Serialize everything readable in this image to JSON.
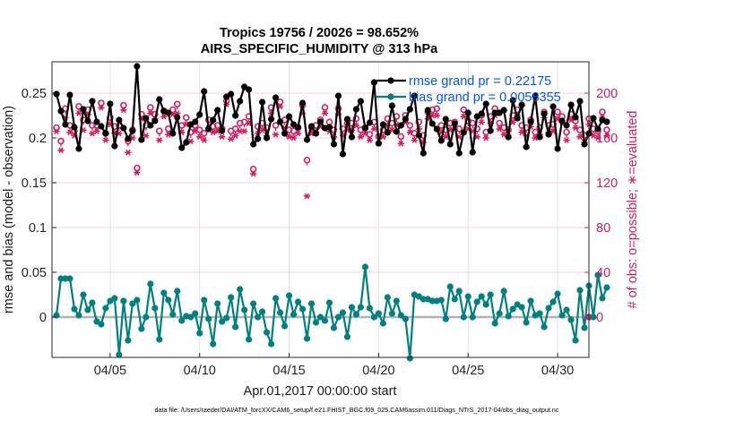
{
  "chart_data": {
    "type": "line",
    "title": "Tropics 19756 / 20026 = 98.652%",
    "subtitle": "AIRS_SPECIFIC_HUMIDITY @ 313 hPa",
    "xlabel": "Apr.01,2017 00:00:00 start",
    "ylabel_left": "rmse and bias (model - observation)",
    "ylabel_right": "# of obs: o=possible; ∗=evaluated",
    "footer": "data file: /Users/raeder/DAI/ATM_forcXX/CAM6_setup/f.e21.FHIST_BGC.f09_025.CAM6assim.011/Diags_NTrS_2017-04/obs_diag_output.nc",
    "x_start_day": 0.75,
    "x_end_day": 30.75,
    "xticks": [
      {
        "day": 4,
        "label": "04/05"
      },
      {
        "day": 9,
        "label": "04/10"
      },
      {
        "day": 14,
        "label": "04/15"
      },
      {
        "day": 19,
        "label": "04/20"
      },
      {
        "day": 24,
        "label": "04/25"
      },
      {
        "day": 29,
        "label": "04/30"
      }
    ],
    "ylim_left": [
      -0.045,
      0.285
    ],
    "yticks_left": [
      {
        "v": 0,
        "label": "0"
      },
      {
        "v": 0.05,
        "label": "0.05"
      },
      {
        "v": 0.1,
        "label": "0.1"
      },
      {
        "v": 0.15,
        "label": "0.15"
      },
      {
        "v": 0.2,
        "label": "0.2"
      },
      {
        "v": 0.25,
        "label": "0.25"
      }
    ],
    "ylim_right": [
      -36,
      228
    ],
    "yticks_right": [
      {
        "v": 0,
        "label": "0"
      },
      {
        "v": 40,
        "label": "40"
      },
      {
        "v": 80,
        "label": "80"
      },
      {
        "v": 120,
        "label": "120"
      },
      {
        "v": 160,
        "label": "160"
      },
      {
        "v": 200,
        "label": "200"
      }
    ],
    "grid": true,
    "legend": [
      {
        "name": "rmse grand pr = 0.22175",
        "color": "#000000"
      },
      {
        "name": "bias grand pr = 0.0058355",
        "color": "#008080"
      }
    ],
    "legend_position": "top-right",
    "colors": {
      "rmse": "#000000",
      "bias": "#008080",
      "counts": "#d81b60",
      "zero_line": "#b3b3b3",
      "legend_text": "#0055ff",
      "grid": "#e3e3e3"
    },
    "series": [
      {
        "name": "rmse",
        "axis": "left",
        "values": [
          0.249,
          0.23,
          0.215,
          0.248,
          0.212,
          0.188,
          0.232,
          0.219,
          0.241,
          0.218,
          0.213,
          0.205,
          0.238,
          0.191,
          0.22,
          0.211,
          0.199,
          0.208,
          0.28,
          0.198,
          0.222,
          0.214,
          0.219,
          0.243,
          0.23,
          0.228,
          0.205,
          0.223,
          0.189,
          0.195,
          0.215,
          0.218,
          0.226,
          0.252,
          0.21,
          0.22,
          0.231,
          0.208,
          0.246,
          0.249,
          0.225,
          0.241,
          0.257,
          0.254,
          0.193,
          0.199,
          0.24,
          0.2,
          0.221,
          0.245,
          0.218,
          0.205,
          0.224,
          0.215,
          0.212,
          0.239,
          0.198,
          0.213,
          0.205,
          0.218,
          0.211,
          0.212,
          0.193,
          0.247,
          0.182,
          0.221,
          0.201,
          0.232,
          0.241,
          0.211,
          0.217,
          0.262,
          0.194,
          0.215,
          0.206,
          0.236,
          0.207,
          0.214,
          0.221,
          0.232,
          0.247,
          0.203,
          0.183,
          0.231,
          0.216,
          0.21,
          0.197,
          0.221,
          0.193,
          0.216,
          0.183,
          0.206,
          0.228,
          0.184,
          0.224,
          0.227,
          0.238,
          0.208,
          0.228,
          0.228,
          0.231,
          0.201,
          0.242,
          0.222,
          0.237,
          0.19,
          0.218,
          0.247,
          0.201,
          0.227,
          0.204,
          0.235,
          0.188,
          0.219,
          0.214,
          0.237,
          0.223,
          0.241,
          0.193,
          0.205,
          0.222,
          0.21,
          0.22,
          0.218
        ]
      },
      {
        "name": "bias",
        "axis": "left",
        "values": [
          0.002,
          0.043,
          0.043,
          0.043,
          0.009,
          0.002,
          0.025,
          0.008,
          0.016,
          -0.005,
          -0.008,
          0.01,
          0.018,
          0.021,
          -0.042,
          0.018,
          -0.026,
          0.015,
          0.019,
          -0.013,
          0.0,
          0.037,
          0.01,
          -0.025,
          0.027,
          0.019,
          0.003,
          0.029,
          -0.004,
          0.001,
          0.0,
          0.004,
          -0.018,
          0.019,
          -0.002,
          -0.03,
          0.015,
          -0.005,
          -0.001,
          0.022,
          -0.011,
          0.031,
          0.008,
          -0.025,
          0.015,
          0.0,
          0.006,
          -0.017,
          -0.03,
          0.021,
          0.005,
          -0.01,
          0.024,
          0.003,
          0.017,
          0.009,
          -0.024,
          0.015,
          -0.006,
          0.0,
          -0.004,
          0.016,
          -0.012,
          0.0,
          0.005,
          -0.022,
          0.011,
          0.003,
          0.011,
          0.056,
          0.01,
          0.0,
          0.004,
          -0.007,
          0.022,
          0.004,
          0.018,
          0.002,
          -0.002,
          -0.046,
          0.025,
          0.023,
          0.02,
          0.02,
          0.018,
          0.018,
          0.019,
          -0.002,
          0.034,
          0.02,
          0.029,
          0.0,
          0.023,
          0.0,
          0.017,
          0.023,
          0.014,
          0.025,
          -0.007,
          0.004,
          0.029,
          0.001,
          0.009,
          0.014,
          0.011,
          -0.006,
          0.018,
          0.002,
          0.004,
          -0.011,
          0.01,
          0.017,
          0.026,
          0.002,
          0.008,
          -0.003,
          -0.026,
          0.03,
          -0.012,
          0.035,
          0.0,
          0.047,
          0.021,
          0.033
        ]
      },
      {
        "name": "obs possible",
        "axis": "right",
        "values": [
          168,
          156,
          185,
          170,
          165,
          187,
          175,
          184,
          170,
          170,
          190,
          163,
          177,
          169,
          170,
          188,
          156,
          166,
          132,
          180,
          170,
          186,
          180,
          165,
          183,
          167,
          184,
          189,
          170,
          177,
          164,
          170,
          166,
          163,
          175,
          169,
          170,
          167,
          192,
          165,
          167,
          172,
          173,
          178,
          131,
          169,
          172,
          168,
          186,
          170,
          191,
          175,
          166,
          165,
          168,
          188,
          139,
          168,
          170,
          175,
          186,
          173,
          166,
          185,
          167,
          172,
          172,
          176,
          166,
          168,
          162,
          173,
          160,
          166,
          176,
          172,
          178,
          160,
          179,
          170,
          163,
          173,
          161,
          182,
          184,
          185,
          170,
          166,
          172,
          173,
          167,
          184,
          174,
          172,
          167,
          179,
          164,
          178,
          185,
          172,
          168,
          166,
          179,
          184,
          170,
          168,
          175,
          164,
          168,
          182,
          170,
          171,
          182,
          178,
          164,
          180,
          174,
          166,
          161,
          176,
          167,
          165,
          182,
          166
        ]
      },
      {
        "name": "obs evaluated",
        "axis": "right",
        "values": [
          166,
          149,
          178,
          165,
          162,
          182,
          167,
          181,
          164,
          166,
          187,
          158,
          172,
          164,
          164,
          185,
          147,
          160,
          129,
          177,
          162,
          182,
          177,
          158,
          179,
          163,
          181,
          182,
          165,
          172,
          157,
          166,
          161,
          158,
          169,
          165,
          166,
          161,
          190,
          159,
          162,
          166,
          166,
          173,
          128,
          164,
          167,
          162,
          182,
          163,
          188,
          169,
          161,
          160,
          164,
          182,
          108,
          164,
          165,
          170,
          182,
          166,
          161,
          181,
          162,
          167,
          167,
          171,
          161,
          164,
          158,
          168,
          155,
          161,
          171,
          167,
          172,
          155,
          174,
          165,
          158,
          168,
          156,
          177,
          180,
          180,
          165,
          161,
          167,
          168,
          161,
          179,
          168,
          166,
          161,
          174,
          160,
          173,
          180,
          168,
          163,
          162,
          174,
          180,
          165,
          162,
          170,
          160,
          163,
          178,
          165,
          166,
          177,
          174,
          158,
          176,
          169,
          161,
          156,
          172,
          162,
          160,
          178,
          162
        ]
      }
    ]
  }
}
